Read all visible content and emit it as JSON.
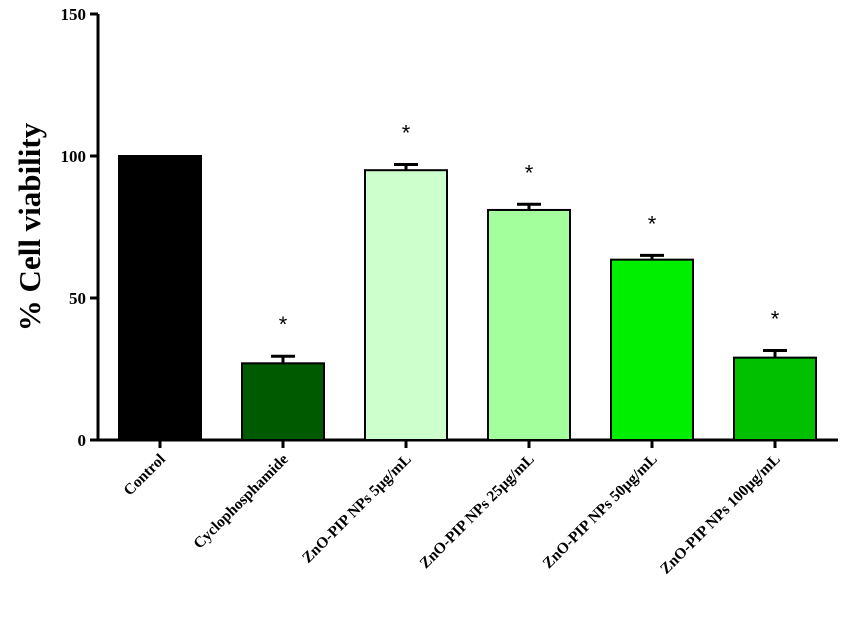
{
  "chart_data": {
    "type": "bar",
    "title": "",
    "xlabel": "",
    "ylabel": "% Cell viability",
    "ylim": [
      0,
      150
    ],
    "yticks": [
      0,
      50,
      100,
      150
    ],
    "grid": false,
    "categories": [
      "Control",
      "Cyclophosphamide",
      "ZnO-PIP NPs 5µg/mL",
      "ZnO-PIP NPs 25µg/mL",
      "ZnO-PIP NPs 50µg/mL",
      "ZnO-PIP NPs 100µg/mL"
    ],
    "values": [
      100,
      27,
      95,
      81,
      63.5,
      29
    ],
    "errors": [
      0,
      2.5,
      2,
      2,
      1.5,
      2.5
    ],
    "significance": [
      "",
      "*",
      "*",
      "*",
      "*",
      "*"
    ],
    "colors": [
      "#000000",
      "#005a00",
      "#ccffcc",
      "#a3ff9c",
      "#00ee00",
      "#00c000"
    ]
  }
}
